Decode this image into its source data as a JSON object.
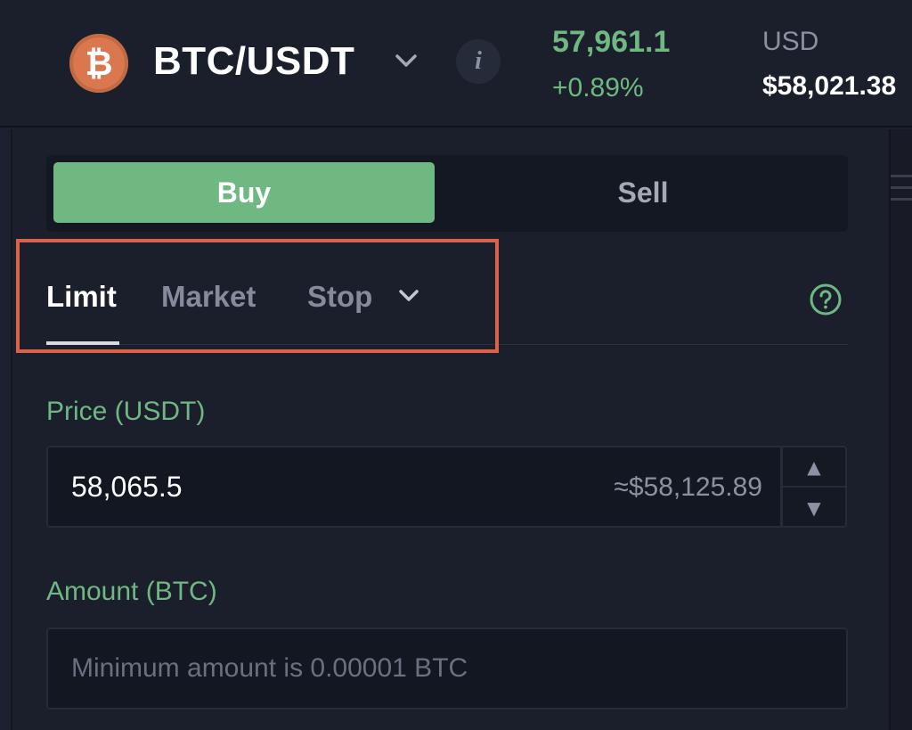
{
  "header": {
    "coin_glyph": "₿",
    "pair": "BTC/USDT",
    "info_glyph": "i",
    "last_price": "57,961.1",
    "change": "+0.89%",
    "usd_label": "USD",
    "usd_value": "$58,021.38"
  },
  "side_toggle": {
    "buy_label": "Buy",
    "sell_label": "Sell",
    "selected": "Buy"
  },
  "order_tabs": {
    "items": [
      {
        "label": "Limit",
        "active": true
      },
      {
        "label": "Market",
        "active": false
      },
      {
        "label": "Stop",
        "active": false
      }
    ]
  },
  "price_field": {
    "label": "Price (USDT)",
    "value": "58,065.5",
    "approx": "≈$58,125.89"
  },
  "amount_field": {
    "label": "Amount (BTC)",
    "value": "",
    "placeholder": "Minimum amount is 0.00001 BTC"
  },
  "icons": {
    "coin": "bitcoin-icon",
    "pair_dropdown": "chevron-down-icon",
    "info": "info-icon",
    "stop_dropdown": "chevron-down-icon",
    "help": "help-circle-icon",
    "step_up": "triangle-up-icon",
    "step_down": "triangle-down-icon"
  },
  "colors": {
    "background": "#1c2030",
    "accent_green": "#6fb882",
    "highlight_box": "#d9634a",
    "bitcoin_orange": "#d9774e"
  }
}
